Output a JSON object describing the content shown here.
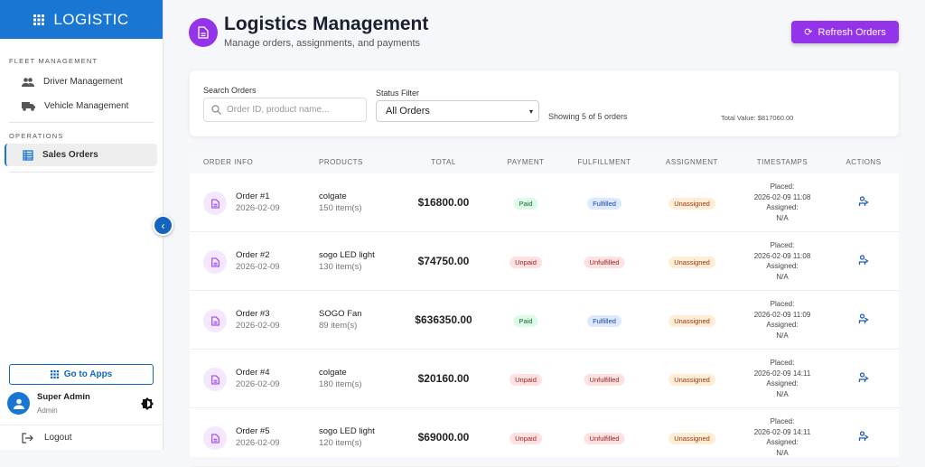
{
  "sidebar": {
    "brand": "LOGISTIC",
    "section_fleet": "FLEET MANAGEMENT",
    "items_fleet": [
      {
        "label": "Driver Management",
        "icon": "people-icon"
      },
      {
        "label": "Vehicle Management",
        "icon": "truck-icon"
      }
    ],
    "section_ops": "OPERATIONS",
    "items_ops": [
      {
        "label": "Sales Orders",
        "icon": "table-icon",
        "active": true
      }
    ],
    "go_to_apps": "Go to Apps",
    "user": {
      "name": "Super Admin",
      "role": "Admin"
    },
    "logout": "Logout"
  },
  "header": {
    "title": "Logistics Management",
    "subtitle": "Manage orders, assignments, and payments",
    "refresh": "Refresh Orders"
  },
  "filters": {
    "search_label": "Search Orders",
    "search_placeholder": "Order ID, product name...",
    "status_label": "Status Filter",
    "status_value": "All Orders",
    "showing": "Showing 5 of 5 orders",
    "total_value": "Total Value: $817060.00"
  },
  "table": {
    "columns": [
      "ORDER INFO",
      "PRODUCTS",
      "TOTAL",
      "PAYMENT",
      "FULFILLMENT",
      "ASSIGNMENT",
      "TIMESTAMPS",
      "ACTIONS"
    ],
    "placed_label": "Placed:",
    "assigned_label": "Assigned:",
    "rows": [
      {
        "order": "Order #1",
        "date": "2026-02-09",
        "product": "colgate",
        "items": "150 item(s)",
        "total": "$16800.00",
        "payment": "Paid",
        "fulfillment": "Fulfilled",
        "assignment": "Unassigned",
        "placed": "2026-02-09 11:08",
        "assigned": "N/A"
      },
      {
        "order": "Order #2",
        "date": "2026-02-09",
        "product": "sogo LED light",
        "items": "130 item(s)",
        "total": "$74750.00",
        "payment": "Unpaid",
        "fulfillment": "Unfulfilled",
        "assignment": "Unassigned",
        "placed": "2026-02-09 11:08",
        "assigned": "N/A"
      },
      {
        "order": "Order #3",
        "date": "2026-02-09",
        "product": "SOGO Fan",
        "items": "89 item(s)",
        "total": "$636350.00",
        "payment": "Paid",
        "fulfillment": "Fulfilled",
        "assignment": "Unassigned",
        "placed": "2026-02-09 11:09",
        "assigned": "N/A"
      },
      {
        "order": "Order #4",
        "date": "2026-02-09",
        "product": "colgate",
        "items": "180 item(s)",
        "total": "$20160.00",
        "payment": "Unpaid",
        "fulfillment": "Unfulfilled",
        "assignment": "Unassigned",
        "placed": "2026-02-09 14:11",
        "assigned": "N/A"
      },
      {
        "order": "Order #5",
        "date": "2026-02-09",
        "product": "sogo LED light",
        "items": "120 item(s)",
        "total": "$69000.00",
        "payment": "Unpaid",
        "fulfillment": "Unfulfilled",
        "assignment": "Unassigned",
        "placed": "2026-02-09 14:11",
        "assigned": "N/A"
      }
    ]
  },
  "colors": {
    "primary": "#1976d2",
    "accent": "#9333ea"
  }
}
